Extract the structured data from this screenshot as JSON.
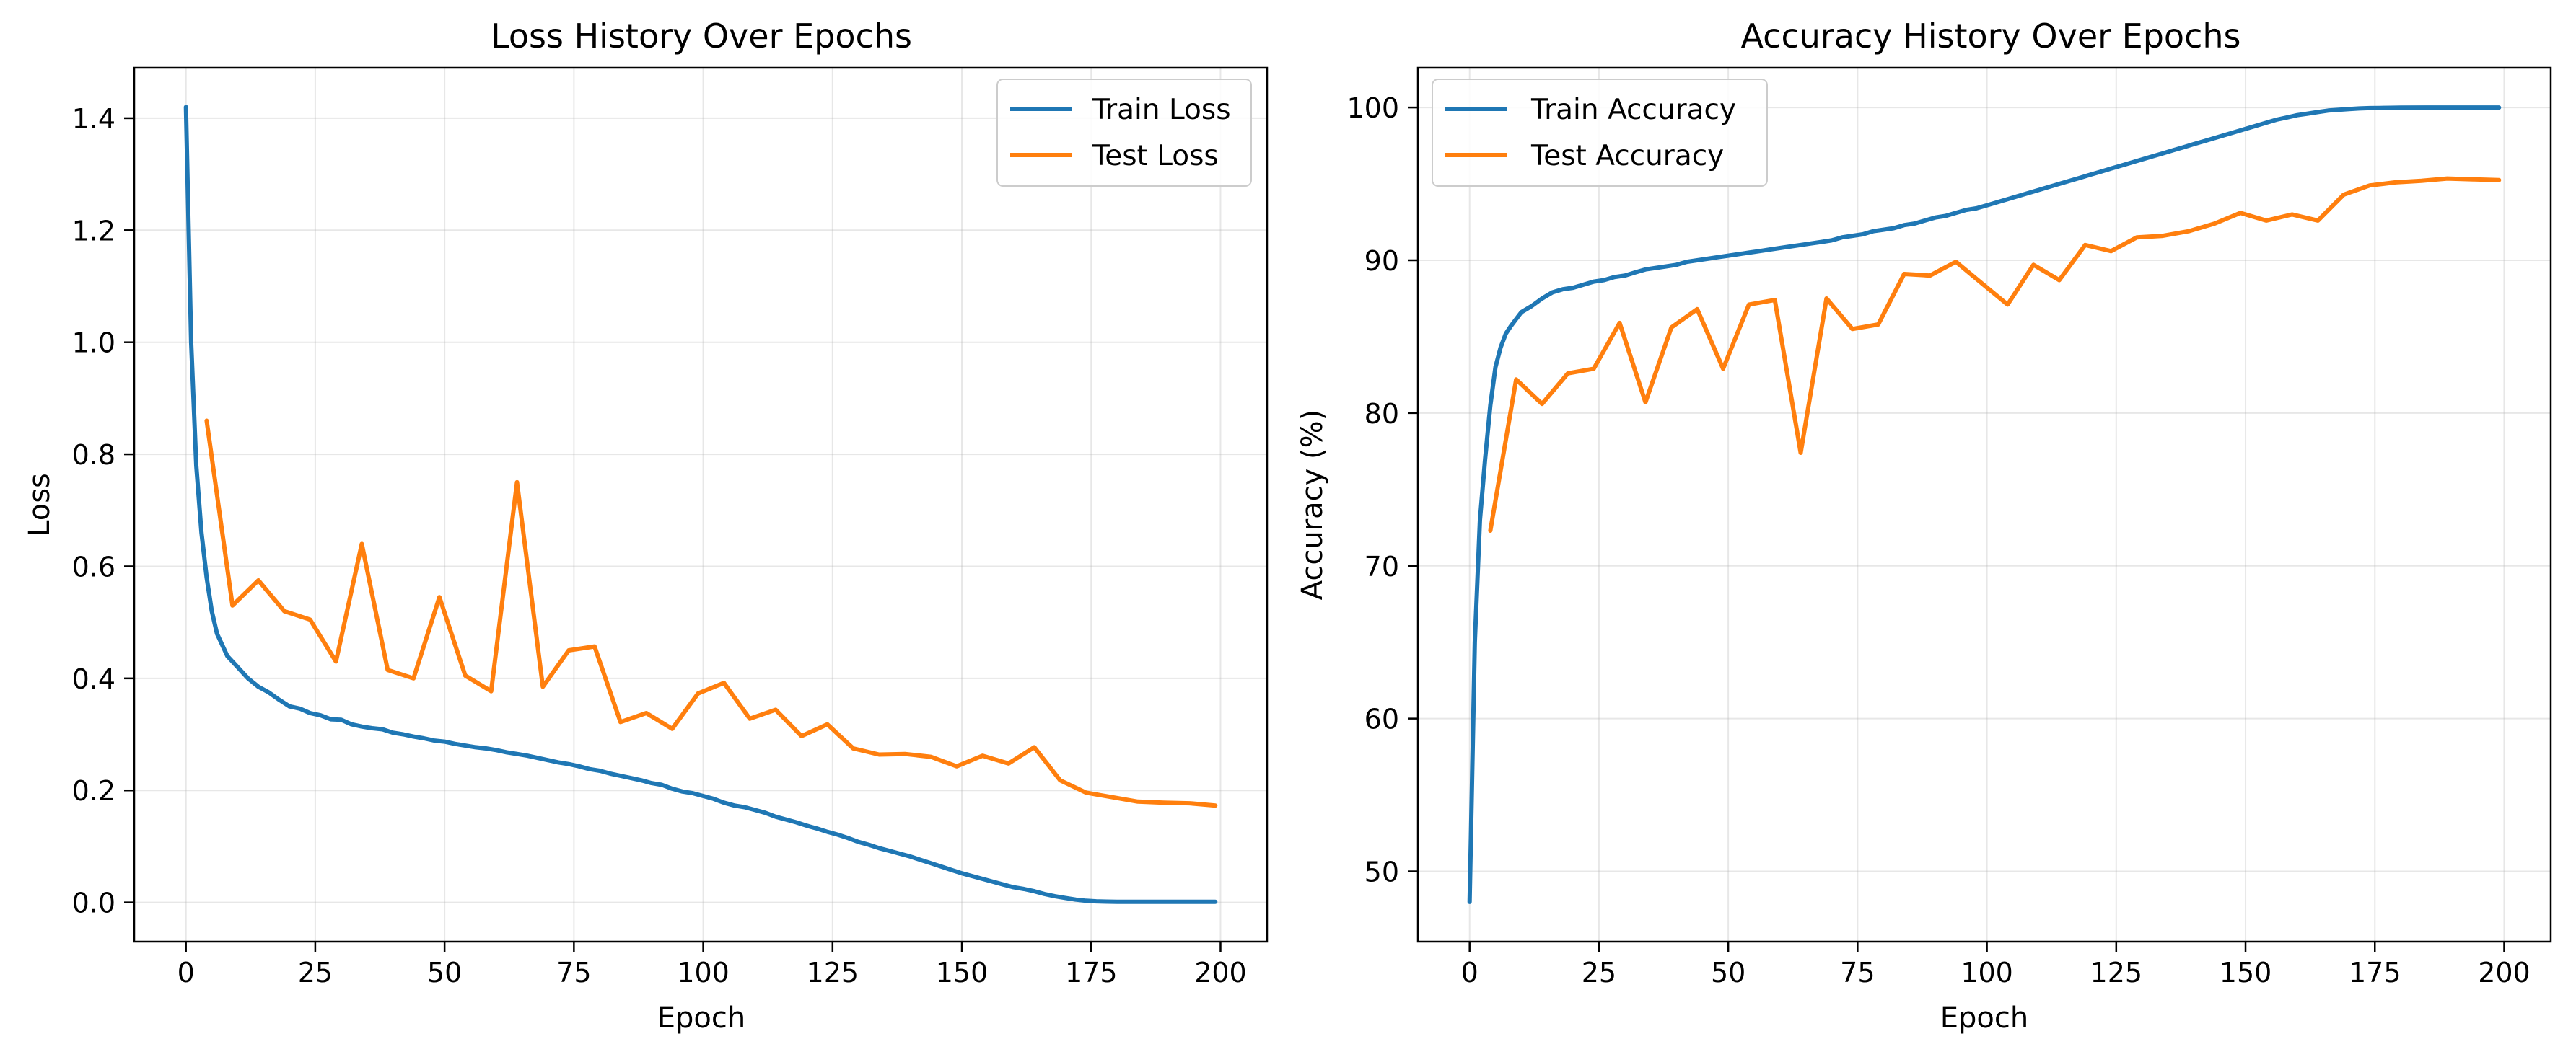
{
  "chart_data": [
    {
      "type": "line",
      "title": "Loss History Over Epochs",
      "xlabel": "Epoch",
      "ylabel": "Loss",
      "xlim": [
        -10,
        209
      ],
      "ylim": [
        -0.07,
        1.49
      ],
      "xticks": [
        0,
        25,
        50,
        75,
        100,
        125,
        150,
        175,
        200
      ],
      "yticks": [
        0.0,
        0.2,
        0.4,
        0.6,
        0.8,
        1.0,
        1.2,
        1.4
      ],
      "ytick_labels": [
        "0.0",
        "0.2",
        "0.4",
        "0.6",
        "0.8",
        "1.0",
        "1.2",
        "1.4"
      ],
      "grid": true,
      "legend_position": "top-right",
      "series": [
        {
          "name": "Train Loss",
          "color": "#1f77b4",
          "x": [
            0,
            1,
            2,
            3,
            4,
            5,
            6,
            8,
            10,
            12,
            14,
            16,
            18,
            20,
            22,
            24,
            26,
            28,
            30,
            32,
            34,
            36,
            38,
            40,
            42,
            44,
            46,
            48,
            50,
            52,
            54,
            56,
            58,
            60,
            62,
            64,
            66,
            68,
            70,
            72,
            74,
            76,
            78,
            80,
            82,
            84,
            86,
            88,
            90,
            92,
            94,
            96,
            98,
            100,
            102,
            104,
            106,
            108,
            110,
            112,
            114,
            116,
            118,
            120,
            122,
            124,
            126,
            128,
            130,
            132,
            134,
            136,
            138,
            140,
            142,
            144,
            146,
            148,
            150,
            152,
            154,
            156,
            158,
            160,
            162,
            164,
            166,
            168,
            170,
            172,
            174,
            176,
            178,
            180,
            185,
            190,
            195,
            199
          ],
          "values": [
            1.42,
            1.0,
            0.78,
            0.66,
            0.58,
            0.52,
            0.48,
            0.44,
            0.42,
            0.4,
            0.385,
            0.375,
            0.362,
            0.35,
            0.346,
            0.338,
            0.334,
            0.327,
            0.326,
            0.318,
            0.314,
            0.311,
            0.309,
            0.303,
            0.3,
            0.296,
            0.293,
            0.289,
            0.287,
            0.283,
            0.28,
            0.277,
            0.275,
            0.272,
            0.268,
            0.265,
            0.262,
            0.258,
            0.254,
            0.25,
            0.247,
            0.243,
            0.238,
            0.235,
            0.23,
            0.226,
            0.222,
            0.218,
            0.213,
            0.21,
            0.203,
            0.198,
            0.195,
            0.19,
            0.185,
            0.178,
            0.173,
            0.17,
            0.165,
            0.16,
            0.153,
            0.148,
            0.143,
            0.137,
            0.132,
            0.126,
            0.121,
            0.115,
            0.108,
            0.103,
            0.097,
            0.092,
            0.087,
            0.082,
            0.076,
            0.07,
            0.064,
            0.058,
            0.052,
            0.047,
            0.042,
            0.037,
            0.032,
            0.027,
            0.024,
            0.02,
            0.015,
            0.011,
            0.008,
            0.005,
            0.003,
            0.002,
            0.0015,
            0.001,
            0.001,
            0.001,
            0.001,
            0.001
          ]
        },
        {
          "name": "Test Loss",
          "color": "#ff7f0e",
          "x": [
            4,
            9,
            14,
            19,
            24,
            29,
            34,
            39,
            44,
            49,
            54,
            59,
            64,
            69,
            74,
            79,
            84,
            89,
            94,
            99,
            104,
            109,
            114,
            119,
            124,
            129,
            134,
            139,
            144,
            149,
            154,
            159,
            164,
            169,
            174,
            179,
            184,
            189,
            194,
            199
          ],
          "values": [
            0.86,
            0.53,
            0.575,
            0.52,
            0.505,
            0.43,
            0.64,
            0.415,
            0.4,
            0.545,
            0.405,
            0.377,
            0.75,
            0.385,
            0.45,
            0.457,
            0.322,
            0.338,
            0.31,
            0.373,
            0.392,
            0.328,
            0.344,
            0.297,
            0.318,
            0.275,
            0.264,
            0.265,
            0.26,
            0.243,
            0.262,
            0.248,
            0.277,
            0.218,
            0.196,
            0.188,
            0.18,
            0.178,
            0.177,
            0.173
          ]
        }
      ]
    },
    {
      "type": "line",
      "title": "Accuracy History Over Epochs",
      "xlabel": "Epoch",
      "ylabel": "Accuracy (%)",
      "xlim": [
        -10,
        209
      ],
      "ylim": [
        45.4,
        102.6
      ],
      "xticks": [
        0,
        25,
        50,
        75,
        100,
        125,
        150,
        175,
        200
      ],
      "yticks": [
        50,
        60,
        70,
        80,
        90,
        100
      ],
      "ytick_labels": [
        "50",
        "60",
        "70",
        "80",
        "90",
        "100"
      ],
      "grid": true,
      "legend_position": "top-left",
      "series": [
        {
          "name": "Train Accuracy",
          "color": "#1f77b4",
          "x": [
            0,
            1,
            2,
            3,
            4,
            5,
            6,
            7,
            8,
            10,
            12,
            14,
            16,
            18,
            20,
            22,
            24,
            26,
            28,
            30,
            32,
            34,
            36,
            38,
            40,
            42,
            44,
            46,
            48,
            50,
            52,
            54,
            56,
            58,
            60,
            62,
            64,
            66,
            68,
            70,
            72,
            74,
            76,
            78,
            80,
            82,
            84,
            86,
            88,
            90,
            92,
            94,
            96,
            98,
            100,
            102,
            104,
            106,
            108,
            110,
            112,
            114,
            116,
            118,
            120,
            122,
            124,
            126,
            128,
            130,
            132,
            134,
            136,
            138,
            140,
            142,
            144,
            146,
            148,
            150,
            152,
            154,
            156,
            158,
            160,
            162,
            164,
            166,
            168,
            170,
            172,
            174,
            176,
            178,
            180,
            185,
            190,
            195,
            199
          ],
          "values": [
            48.0,
            65.0,
            73.0,
            77.0,
            80.5,
            83.0,
            84.3,
            85.2,
            85.7,
            86.6,
            87.0,
            87.5,
            87.9,
            88.1,
            88.2,
            88.4,
            88.6,
            88.7,
            88.9,
            89.0,
            89.2,
            89.4,
            89.5,
            89.6,
            89.7,
            89.9,
            90.0,
            90.1,
            90.2,
            90.3,
            90.4,
            90.5,
            90.6,
            90.7,
            90.8,
            90.9,
            91.0,
            91.1,
            91.2,
            91.3,
            91.5,
            91.6,
            91.7,
            91.9,
            92.0,
            92.1,
            92.3,
            92.4,
            92.6,
            92.8,
            92.9,
            93.1,
            93.3,
            93.4,
            93.6,
            93.8,
            94.0,
            94.2,
            94.4,
            94.6,
            94.8,
            95.0,
            95.2,
            95.4,
            95.6,
            95.8,
            96.0,
            96.2,
            96.4,
            96.6,
            96.8,
            97.0,
            97.2,
            97.4,
            97.6,
            97.8,
            98.0,
            98.2,
            98.4,
            98.6,
            98.8,
            99.0,
            99.2,
            99.35,
            99.5,
            99.6,
            99.7,
            99.8,
            99.85,
            99.9,
            99.94,
            99.96,
            99.97,
            99.98,
            99.99,
            100.0,
            100.0,
            100.0,
            100.0
          ]
        },
        {
          "name": "Test Accuracy",
          "color": "#ff7f0e",
          "x": [
            4,
            9,
            14,
            19,
            24,
            29,
            34,
            39,
            44,
            49,
            54,
            59,
            64,
            69,
            74,
            79,
            84,
            89,
            94,
            99,
            104,
            109,
            114,
            119,
            124,
            129,
            134,
            139,
            144,
            149,
            154,
            159,
            164,
            169,
            174,
            179,
            184,
            189,
            194,
            199
          ],
          "values": [
            72.3,
            82.2,
            80.6,
            82.6,
            82.9,
            85.9,
            80.7,
            85.6,
            86.8,
            82.9,
            87.1,
            87.4,
            77.4,
            87.5,
            85.5,
            85.8,
            89.1,
            89.0,
            89.9,
            88.5,
            87.1,
            89.7,
            88.7,
            91.0,
            90.6,
            91.5,
            91.6,
            91.9,
            92.4,
            93.1,
            92.6,
            93.0,
            92.6,
            94.3,
            94.9,
            95.1,
            95.2,
            95.35,
            95.3,
            95.25
          ]
        }
      ]
    }
  ]
}
